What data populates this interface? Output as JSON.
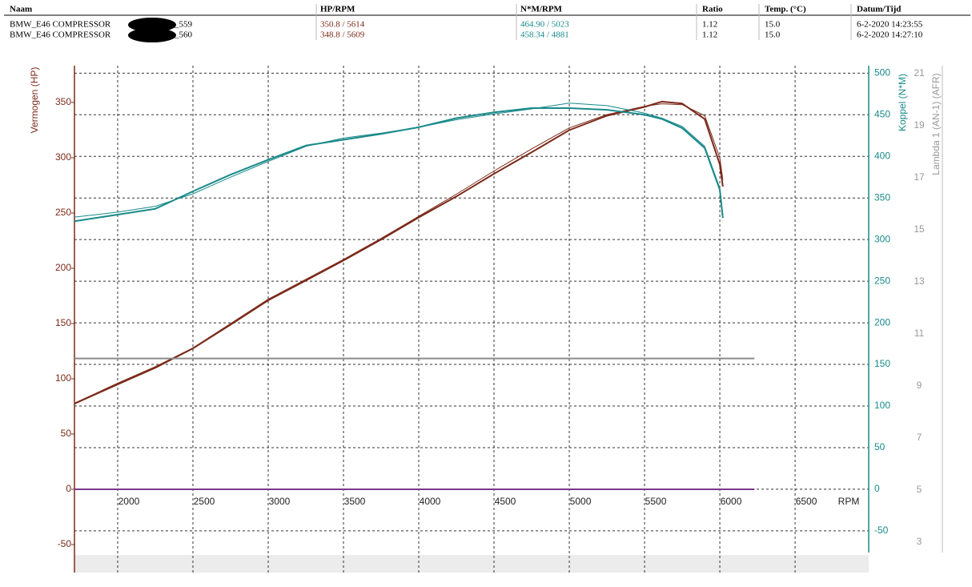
{
  "table": {
    "columns": [
      "Naam",
      "HP/RPM",
      "N*M/RPM",
      "Ratio",
      "Temp. (°C)",
      "Datum/Tijd"
    ],
    "rows": [
      {
        "name": "BMW_E46 COMPRESSOR",
        "name_suffix": "_559",
        "hp": "350.8 / 5614",
        "torque": "464.90 / 5023",
        "ratio": "1.12",
        "temp": "15.0",
        "date": "6-2-2020 14:23:55"
      },
      {
        "name": "BMW_E46 COMPRESSOR",
        "name_suffix": "_560",
        "hp": "348.8 / 5609",
        "torque": "458.34 / 4881",
        "ratio": "1.12",
        "temp": "15.0",
        "date": "6-2-2020 14:27:10"
      }
    ]
  },
  "chart_data": {
    "type": "line",
    "y_label": "Vermogen (HP)",
    "y2_label": "Koppel (N*M)",
    "y3_label": "Lambda 1 (AN-1) (AFR)",
    "x_label": "RPM",
    "xlim": [
      1713,
      6989
    ],
    "xticks": [
      2000,
      2500,
      3000,
      3500,
      4000,
      4500,
      5000,
      5500,
      6000,
      6500
    ],
    "ylim": [
      -59.4,
      383.3
    ],
    "yticks": [
      -50,
      0,
      50,
      100,
      150,
      200,
      250,
      300,
      350
    ],
    "y2lim": [
      -79,
      509
    ],
    "y2ticks": [
      -50,
      0,
      50,
      100,
      150,
      200,
      250,
      300,
      350,
      400,
      450,
      500
    ],
    "y3lim": [
      2.5,
      21.3
    ],
    "y3ticks": [
      3,
      5,
      7,
      9,
      11,
      13,
      15,
      17,
      19,
      21
    ],
    "grid": true,
    "x": [
      1713,
      2000,
      2250,
      2500,
      2750,
      3000,
      3250,
      3500,
      3750,
      4000,
      4250,
      4500,
      4750,
      5000,
      5250,
      5500,
      5614,
      5750,
      5900,
      6000,
      6020
    ],
    "series": [
      {
        "color": "#7b2a1a",
        "axis": "y",
        "width": 2,
        "values": [
          77.5,
          95,
          110,
          127.5,
          149,
          171,
          189,
          207,
          226,
          246,
          265,
          285.5,
          305,
          325,
          338,
          346,
          350.8,
          349,
          335,
          294,
          274
        ]
      },
      {
        "color": "#7b2a1a",
        "axis": "y",
        "width": 1,
        "values": [
          78,
          96,
          111,
          128,
          150,
          172,
          190,
          208,
          227,
          247,
          267,
          288,
          308,
          327,
          339,
          346.5,
          348.8,
          348,
          338,
          300,
          280
        ]
      },
      {
        "color": "#1a8a8a",
        "axis": "y2",
        "width": 1,
        "values": [
          327,
          333,
          340,
          355,
          375,
          394,
          412,
          422,
          428,
          435,
          444,
          451,
          457,
          464,
          461,
          452,
          446,
          436,
          412,
          362,
          330
        ]
      },
      {
        "color": "#1a8a8a",
        "axis": "y2",
        "width": 2,
        "values": [
          322,
          330,
          337,
          358,
          378,
          396,
          413,
          420,
          427,
          435,
          446,
          453,
          458,
          458,
          456,
          450,
          445,
          434,
          410,
          360,
          326
        ]
      },
      {
        "color": "#8a8a8a",
        "axis": "y3",
        "width": 2,
        "x": [
          1713,
          6230
        ],
        "values": [
          10.05,
          10.05
        ]
      },
      {
        "color": "#7a3a8a",
        "axis": "y",
        "width": 2,
        "x": [
          1713,
          6230
        ],
        "values": [
          0,
          0
        ]
      }
    ]
  }
}
